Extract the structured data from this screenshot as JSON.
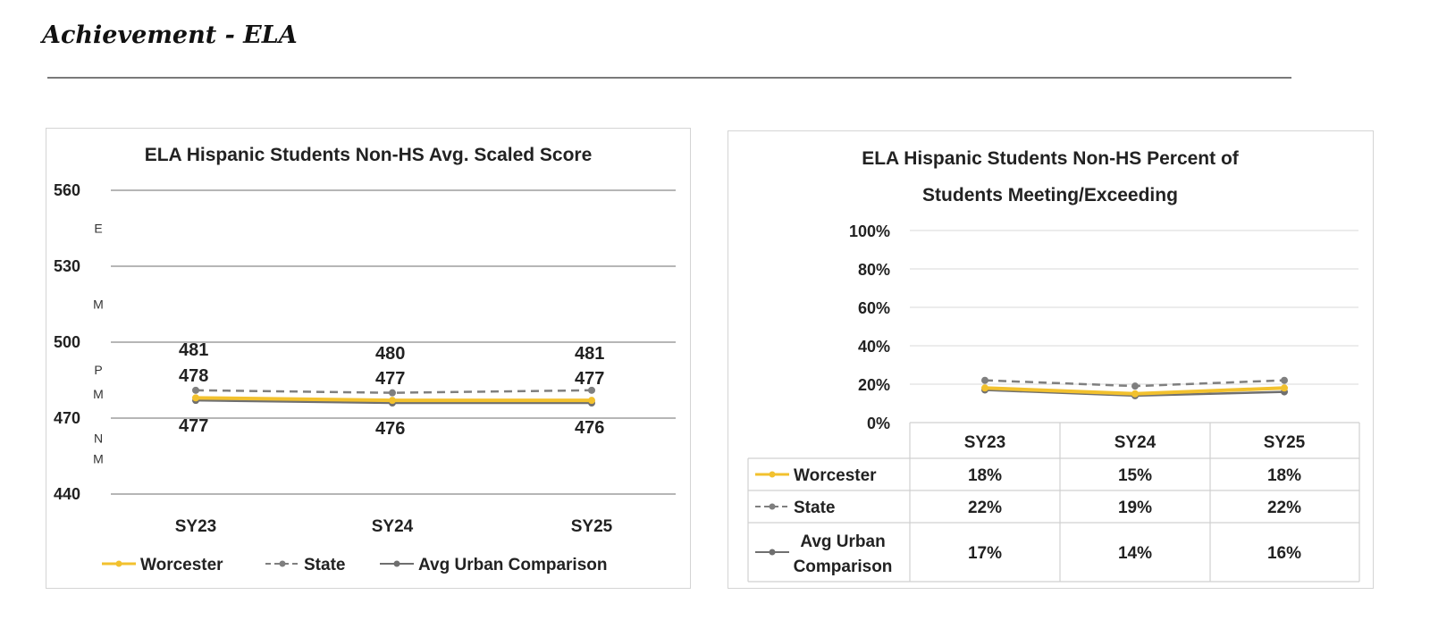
{
  "page": {
    "heading": "Achievement - ELA"
  },
  "series_styles": [
    {
      "name": "Worcester",
      "color": "#f2c12e",
      "dash": "",
      "marker": true
    },
    {
      "name": "State",
      "color": "#7f7f7f",
      "dash": "9,6",
      "marker": true
    },
    {
      "name": "Avg Urban Comparison",
      "color": "#6f6f6f",
      "dash": "",
      "marker": true
    }
  ],
  "chart_data": [
    {
      "type": "line",
      "title": "ELA Hispanic Students Non-HS Avg. Scaled Score",
      "categories": [
        "SY23",
        "SY24",
        "SY25"
      ],
      "ylim": [
        440,
        560
      ],
      "yticks": [
        440,
        470,
        500,
        530,
        560
      ],
      "band_labels": [
        {
          "text": "E",
          "y": 545
        },
        {
          "text": "M",
          "y": 515
        },
        {
          "text": "P",
          "y": 489
        },
        {
          "text": "M",
          "y": 479.5
        },
        {
          "text": "N",
          "y": 462
        },
        {
          "text": "M",
          "y": 454
        }
      ],
      "series": [
        {
          "name": "Worcester",
          "values": [
            478,
            477,
            477
          ]
        },
        {
          "name": "State",
          "values": [
            481,
            480,
            481
          ]
        },
        {
          "name": "Avg Urban Comparison",
          "values": [
            477,
            476,
            476
          ]
        }
      ],
      "legend": [
        "Worcester",
        "State",
        "Avg Urban Comparison"
      ],
      "legend_position": "bottom"
    },
    {
      "type": "line",
      "title": "ELA Hispanic Students Non-HS Percent of Students Meeting/Exceeding",
      "title_lines": [
        "ELA Hispanic Students Non-HS Percent of",
        "Students Meeting/Exceeding"
      ],
      "categories": [
        "SY23",
        "SY24",
        "SY25"
      ],
      "ylim": [
        0,
        100
      ],
      "yticks": [
        0,
        20,
        40,
        60,
        80,
        100
      ],
      "ytick_labels": [
        "0%",
        "20%",
        "40%",
        "60%",
        "80%",
        "100%"
      ],
      "series": [
        {
          "name": "Worcester",
          "values": [
            18,
            15,
            18
          ],
          "labels": [
            "18%",
            "15%",
            "18%"
          ]
        },
        {
          "name": "State",
          "values": [
            22,
            19,
            22
          ],
          "labels": [
            "22%",
            "19%",
            "22%"
          ]
        },
        {
          "name": "Avg Urban Comparison",
          "values": [
            17,
            14,
            16
          ],
          "labels": [
            "17%",
            "14%",
            "16%"
          ],
          "legend_lines": [
            "Avg Urban",
            "Comparison"
          ]
        }
      ],
      "data_table": true
    }
  ]
}
